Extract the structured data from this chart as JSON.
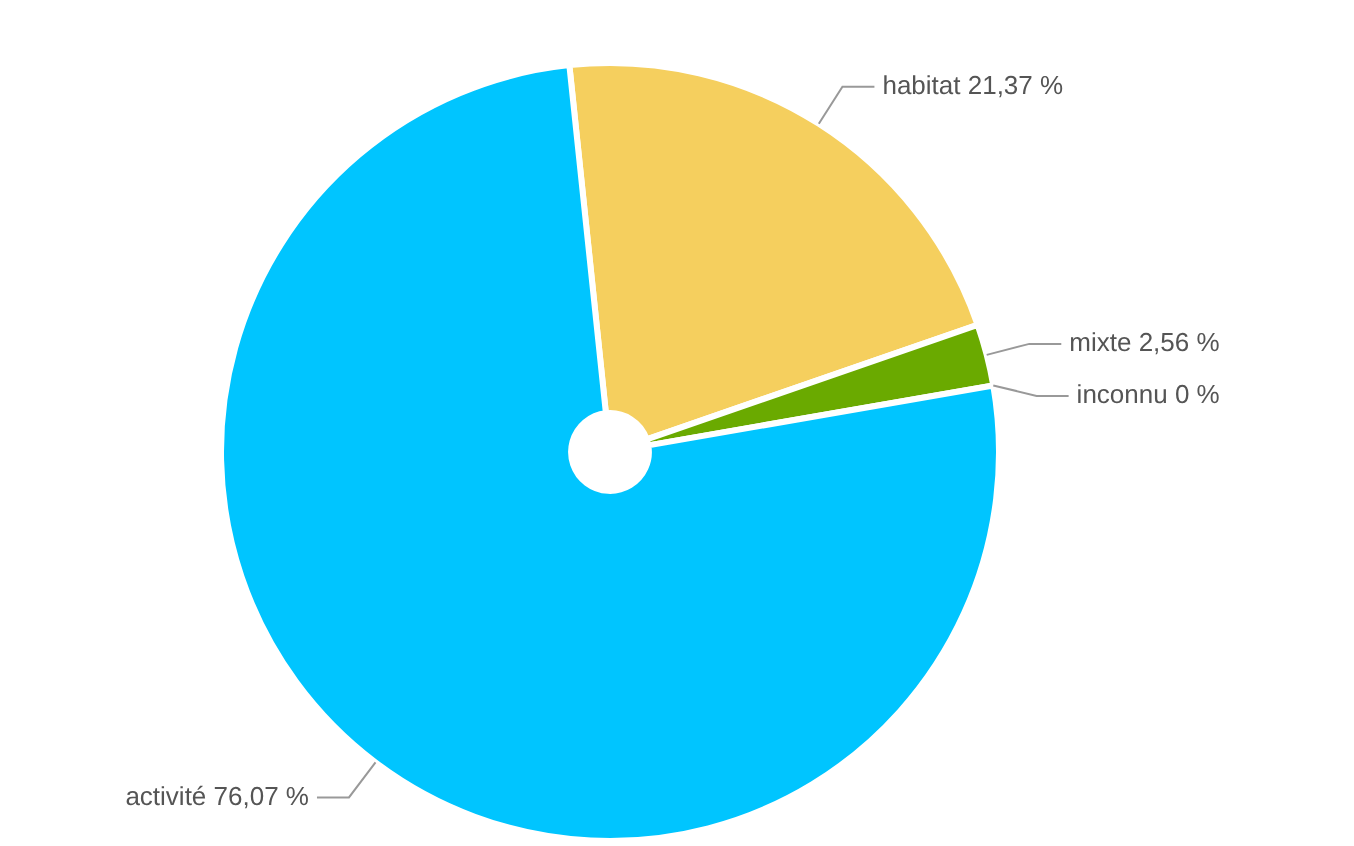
{
  "chart_data": {
    "type": "pie",
    "categories": [
      "habitat",
      "mixte",
      "inconnu",
      "activité"
    ],
    "values": [
      21.37,
      2.56,
      0,
      76.07
    ],
    "value_labels": [
      "21,37 %",
      "2,56 %",
      "0 %",
      "76,07 %"
    ],
    "colors": [
      "#f5cf5e",
      "#6aaa00",
      "#9bbb59",
      "#00c5ff"
    ]
  }
}
